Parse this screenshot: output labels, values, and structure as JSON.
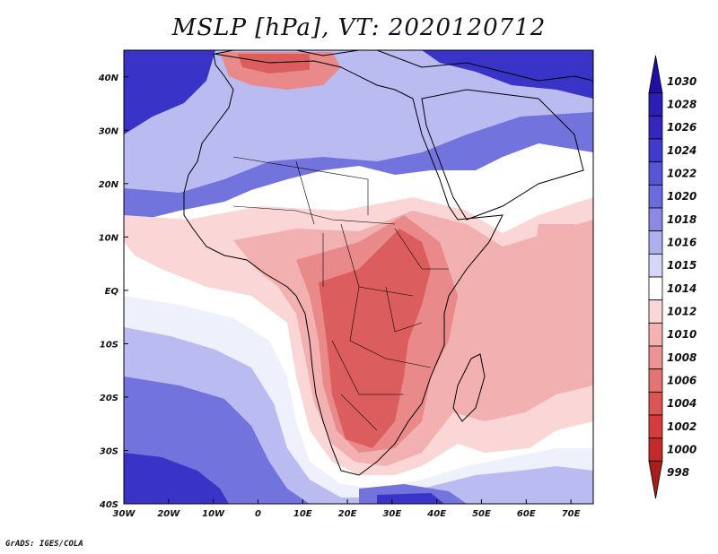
{
  "title": "MSLP [hPa], VT: 2020120712",
  "credit": "GrADS: IGES/COLA",
  "map": {
    "lon_range": [
      -30,
      75
    ],
    "lat_range": [
      -40,
      45
    ],
    "lon_ticks": [
      "30W",
      "20W",
      "10W",
      "0",
      "10E",
      "20E",
      "30E",
      "40E",
      "50E",
      "60E",
      "70E"
    ],
    "lat_ticks": [
      "40N",
      "30N",
      "20N",
      "10N",
      "EQ",
      "10S",
      "20S",
      "30S",
      "40S"
    ]
  },
  "colorbar": {
    "levels": [
      "1030",
      "1028",
      "1026",
      "1024",
      "1022",
      "1020",
      "1018",
      "1016",
      "1015",
      "1014",
      "1012",
      "1010",
      "1008",
      "1006",
      "1004",
      "1002",
      "1000",
      "998"
    ],
    "colors": [
      "#1e0fa5",
      "#2a1fb2",
      "#3526be",
      "#3f3ccb",
      "#5656d6",
      "#6b6bdc",
      "#8a8ae4",
      "#aeb0ee",
      "#d6d7f8",
      "#ffffff",
      "#fbd6d6",
      "#f4b3b3",
      "#ec9393",
      "#e47373",
      "#dc5555",
      "#d43d3d",
      "#c42a2a",
      "#aa1d1d"
    ]
  },
  "map_colors": {
    "ocean_high": "#3a33c8",
    "mid_blue": "#7373de",
    "light_blue": "#b9bbf1",
    "pale": "#eef0fc",
    "white": "#ffffff",
    "pale_red": "#fbd6d6",
    "light_red": "#f3b0b0",
    "mid_red": "#e98989",
    "red": "#dc5d5d",
    "coast": "#000000"
  }
}
